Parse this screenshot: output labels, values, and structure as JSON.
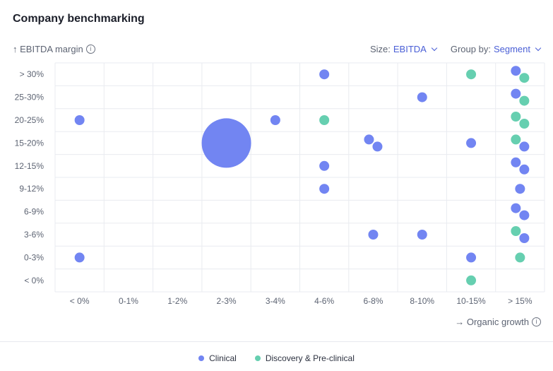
{
  "title": "Company benchmarking",
  "y_axis_label": "↑ EBITDA margin",
  "x_axis_label": "→ Organic growth",
  "controls": {
    "size_label": "Size:",
    "size_value": "EBITDA",
    "group_label": "Group by:",
    "group_value": "Segment"
  },
  "icons": {
    "info": "info-icon",
    "chevron": "chevron-down-icon"
  },
  "colors": {
    "Clinical": "#7285f2",
    "Discovery & Pre-clinical": "#66cfb0"
  },
  "chart_data": {
    "type": "scatter",
    "x_categories": [
      "< 0%",
      "0-1%",
      "1-2%",
      "2-3%",
      "3-4%",
      "4-6%",
      "6-8%",
      "8-10%",
      "10-15%",
      "> 15%"
    ],
    "y_categories": [
      "< 0%",
      "0-3%",
      "3-6%",
      "6-9%",
      "9-12%",
      "12-15%",
      "15-20%",
      "20-25%",
      "25-30%",
      "> 30%"
    ],
    "legend": [
      "Clinical",
      "Discovery & Pre-clinical"
    ],
    "legend_position": "bottom-center",
    "grid": true,
    "points": [
      {
        "x": "4-6%",
        "y": "> 30%",
        "group": "Clinical",
        "size": 1
      },
      {
        "x": "10-15%",
        "y": "> 30%",
        "group": "Discovery & Pre-clinical",
        "size": 1
      },
      {
        "x": "> 15%",
        "y": "> 30%",
        "group": "Clinical",
        "size": 1
      },
      {
        "x": "> 15%",
        "y": "> 30%",
        "group": "Discovery & Pre-clinical",
        "size": 1
      },
      {
        "x": "8-10%",
        "y": "25-30%",
        "group": "Clinical",
        "size": 1
      },
      {
        "x": "> 15%",
        "y": "25-30%",
        "group": "Clinical",
        "size": 1
      },
      {
        "x": "> 15%",
        "y": "25-30%",
        "group": "Discovery & Pre-clinical",
        "size": 1
      },
      {
        "x": "< 0%",
        "y": "20-25%",
        "group": "Clinical",
        "size": 1
      },
      {
        "x": "3-4%",
        "y": "20-25%",
        "group": "Clinical",
        "size": 1
      },
      {
        "x": "4-6%",
        "y": "20-25%",
        "group": "Discovery & Pre-clinical",
        "size": 1
      },
      {
        "x": "> 15%",
        "y": "20-25%",
        "group": "Discovery & Pre-clinical",
        "size": 1
      },
      {
        "x": "> 15%",
        "y": "20-25%",
        "group": "Discovery & Pre-clinical",
        "size": 1
      },
      {
        "x": "2-3%",
        "y": "15-20%",
        "group": "Clinical",
        "size": 25
      },
      {
        "x": "6-8%",
        "y": "15-20%",
        "group": "Clinical",
        "size": 1
      },
      {
        "x": "6-8%",
        "y": "15-20%",
        "group": "Clinical",
        "size": 1
      },
      {
        "x": "10-15%",
        "y": "15-20%",
        "group": "Clinical",
        "size": 1
      },
      {
        "x": "> 15%",
        "y": "15-20%",
        "group": "Discovery & Pre-clinical",
        "size": 1
      },
      {
        "x": "> 15%",
        "y": "15-20%",
        "group": "Clinical",
        "size": 1
      },
      {
        "x": "4-6%",
        "y": "12-15%",
        "group": "Clinical",
        "size": 1
      },
      {
        "x": "> 15%",
        "y": "12-15%",
        "group": "Clinical",
        "size": 1
      },
      {
        "x": "> 15%",
        "y": "12-15%",
        "group": "Clinical",
        "size": 1
      },
      {
        "x": "4-6%",
        "y": "9-12%",
        "group": "Clinical",
        "size": 1
      },
      {
        "x": "> 15%",
        "y": "9-12%",
        "group": "Clinical",
        "size": 1
      },
      {
        "x": "> 15%",
        "y": "6-9%",
        "group": "Clinical",
        "size": 1
      },
      {
        "x": "> 15%",
        "y": "6-9%",
        "group": "Clinical",
        "size": 1
      },
      {
        "x": "6-8%",
        "y": "3-6%",
        "group": "Clinical",
        "size": 1
      },
      {
        "x": "8-10%",
        "y": "3-6%",
        "group": "Clinical",
        "size": 1
      },
      {
        "x": "> 15%",
        "y": "3-6%",
        "group": "Discovery & Pre-clinical",
        "size": 1
      },
      {
        "x": "> 15%",
        "y": "3-6%",
        "group": "Clinical",
        "size": 1
      },
      {
        "x": "< 0%",
        "y": "0-3%",
        "group": "Clinical",
        "size": 1
      },
      {
        "x": "10-15%",
        "y": "0-3%",
        "group": "Clinical",
        "size": 1
      },
      {
        "x": "> 15%",
        "y": "0-3%",
        "group": "Discovery & Pre-clinical",
        "size": 1
      },
      {
        "x": "10-15%",
        "y": "< 0%",
        "group": "Discovery & Pre-clinical",
        "size": 1
      }
    ]
  }
}
